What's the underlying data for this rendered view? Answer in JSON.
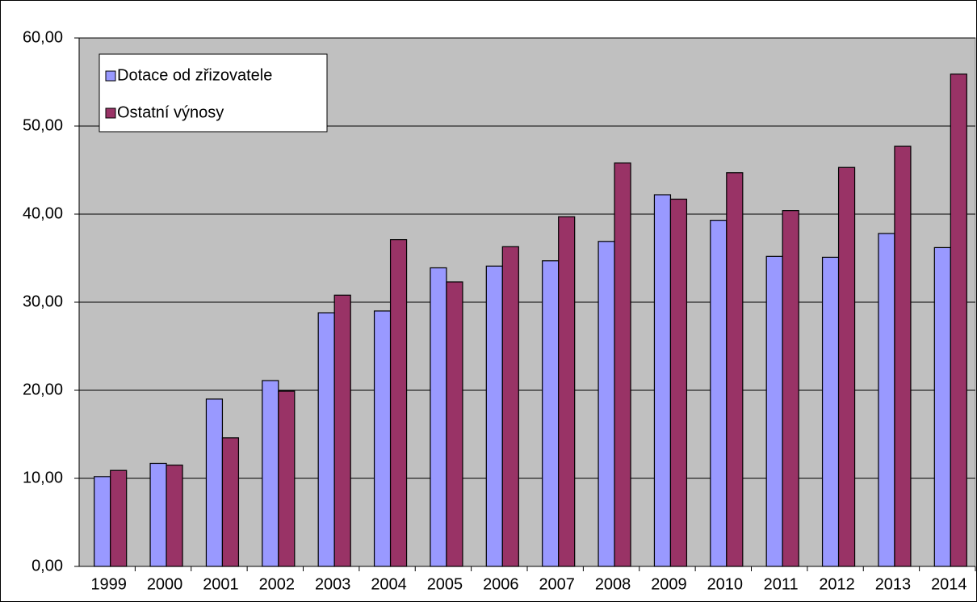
{
  "chart_data": {
    "type": "bar",
    "categories": [
      "1999",
      "2000",
      "2001",
      "2002",
      "2003",
      "2004",
      "2005",
      "2006",
      "2007",
      "2008",
      "2009",
      "2010",
      "2011",
      "2012",
      "2013",
      "2014"
    ],
    "series": [
      {
        "name": "Dotace od zřizovatele",
        "color": "#9999ff",
        "values": [
          10.2,
          11.7,
          19.0,
          21.1,
          28.8,
          29.0,
          33.9,
          34.1,
          34.7,
          36.9,
          42.2,
          39.3,
          35.2,
          35.1,
          37.8,
          36.2
        ]
      },
      {
        "name": "Ostatní výnosy",
        "color": "#993366",
        "values": [
          10.9,
          11.5,
          14.6,
          19.9,
          30.8,
          37.1,
          32.3,
          36.3,
          39.7,
          45.8,
          41.7,
          44.7,
          40.4,
          45.3,
          47.7,
          55.9
        ]
      }
    ],
    "ylim": [
      0,
      60
    ],
    "yticks": [
      {
        "value": 0,
        "label": "0,00"
      },
      {
        "value": 10,
        "label": "10,00"
      },
      {
        "value": 20,
        "label": "20,00"
      },
      {
        "value": 30,
        "label": "30,00"
      },
      {
        "value": 40,
        "label": "40,00"
      },
      {
        "value": 50,
        "label": "50,00"
      },
      {
        "value": 60,
        "label": "60,00"
      }
    ],
    "grid": true,
    "legend": "top-left",
    "plot_background": "#c0c0c0"
  }
}
